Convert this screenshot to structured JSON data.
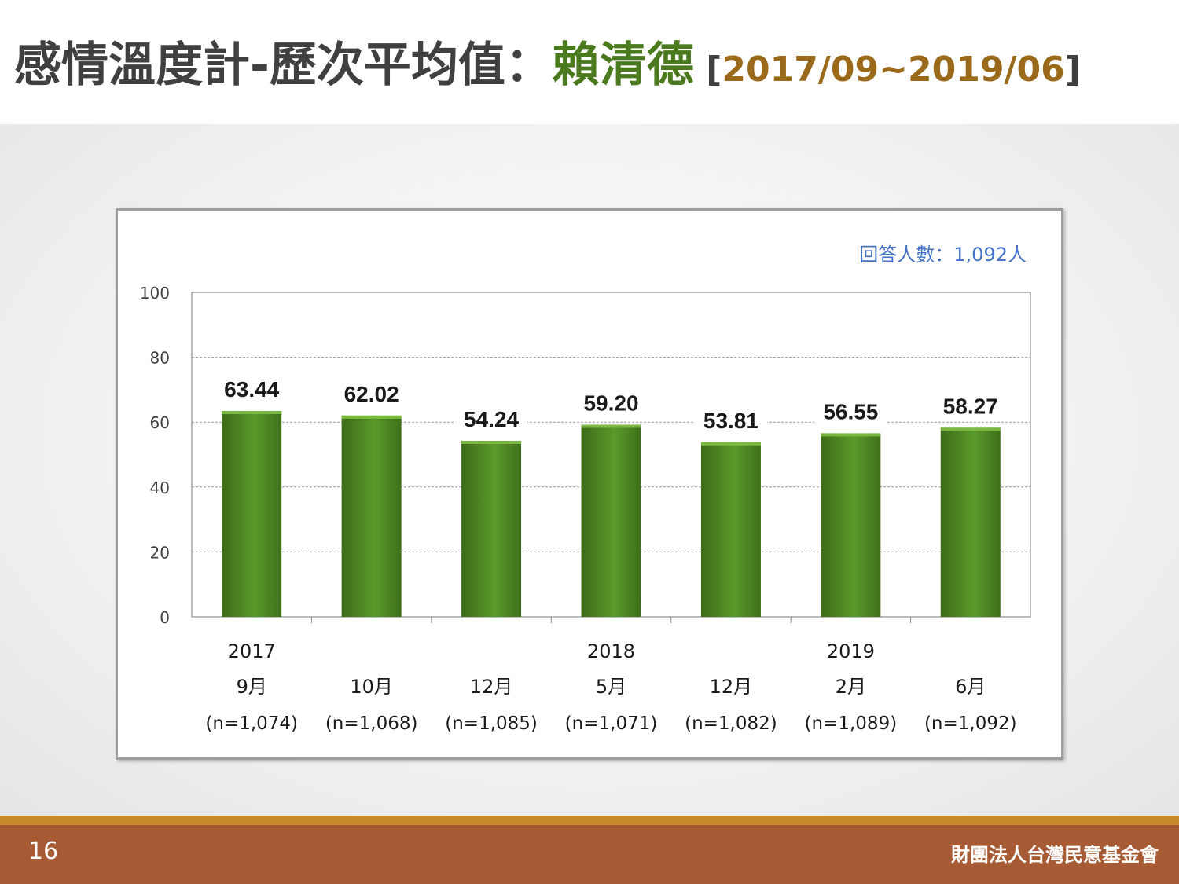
{
  "slide": {
    "title_main": "感情溫度計-歷次平均值：",
    "title_name": "賴清德",
    "title_range_open": " [",
    "title_range": "2017/09~2019/06",
    "title_range_close": "]",
    "page_number": "16",
    "organization": "財團法人台灣民意基金會"
  },
  "chart_data": {
    "type": "bar",
    "respondents_label": "回答人數：1,092人",
    "ylim": [
      0,
      100
    ],
    "yticks": [
      0,
      20,
      40,
      60,
      80,
      100
    ],
    "grid": true,
    "categories": [
      {
        "year": "2017",
        "month": "9月",
        "n": "(n=1,074)"
      },
      {
        "year": "",
        "month": "10月",
        "n": "(n=1,068)"
      },
      {
        "year": "",
        "month": "12月",
        "n": "(n=1,085)"
      },
      {
        "year": "2018",
        "month": "5月",
        "n": "(n=1,071)"
      },
      {
        "year": "",
        "month": "12月",
        "n": "(n=1,082)"
      },
      {
        "year": "2019",
        "month": "2月",
        "n": "(n=1,089)"
      },
      {
        "year": "",
        "month": "6月",
        "n": "(n=1,092)"
      }
    ],
    "values": [
      63.44,
      62.02,
      54.24,
      59.2,
      53.81,
      56.55,
      58.27
    ],
    "value_labels": [
      "63.44",
      "62.02",
      "54.24",
      "59.20",
      "53.81",
      "56.55",
      "58.27"
    ],
    "bar_color": "#4b7f20",
    "label_color": "#4472c4"
  }
}
